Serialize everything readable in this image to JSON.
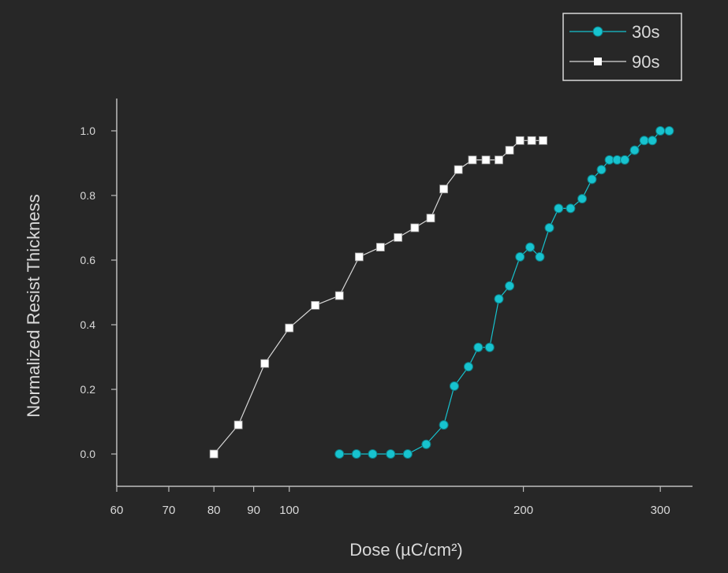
{
  "chart_data": {
    "type": "scatter",
    "xlabel": "Dose (µC/cm²)",
    "ylabel": "Normalized Resist Thickness",
    "x_scale": "log",
    "xlim": [
      60,
      330
    ],
    "ylim": [
      -0.1,
      1.1
    ],
    "x_ticks": [
      60,
      70,
      80,
      90,
      100,
      200,
      300
    ],
    "x_tick_labels": [
      "60",
      "70",
      "80",
      "90",
      "100",
      "200",
      "300"
    ],
    "y_ticks": [
      0.0,
      0.2,
      0.4,
      0.6,
      0.8,
      1.0
    ],
    "y_tick_labels": [
      "0.0",
      "0.2",
      "0.4",
      "0.6",
      "0.8",
      "1.0"
    ],
    "grid": false,
    "legend_position": "top-right",
    "series": [
      {
        "name": "30s",
        "color": "#17c3cf",
        "marker": "circle",
        "x": [
          116,
          122,
          128,
          135,
          142,
          150,
          158,
          163,
          170,
          175,
          181,
          186,
          192,
          198,
          204,
          210,
          216,
          222,
          230,
          238,
          245,
          252,
          258,
          264,
          270,
          278,
          286,
          293,
          300,
          308
        ],
        "y": [
          0.0,
          0.0,
          0.0,
          0.0,
          0.0,
          0.03,
          0.09,
          0.21,
          0.27,
          0.33,
          0.33,
          0.48,
          0.52,
          0.61,
          0.64,
          0.61,
          0.7,
          0.76,
          0.76,
          0.79,
          0.85,
          0.88,
          0.91,
          0.91,
          0.91,
          0.94,
          0.97,
          0.97,
          1.0,
          1.0
        ]
      },
      {
        "name": "90s",
        "color": "#ffffff",
        "marker": "square",
        "x": [
          80,
          86,
          93,
          100,
          108,
          116,
          123,
          131,
          138,
          145,
          152,
          158,
          165,
          172,
          179,
          186,
          192,
          198,
          205,
          212
        ],
        "y": [
          0.0,
          0.09,
          0.28,
          0.39,
          0.46,
          0.49,
          0.61,
          0.64,
          0.67,
          0.7,
          0.73,
          0.82,
          0.88,
          0.91,
          0.91,
          0.91,
          0.94,
          0.97,
          0.97,
          0.97
        ]
      }
    ]
  }
}
